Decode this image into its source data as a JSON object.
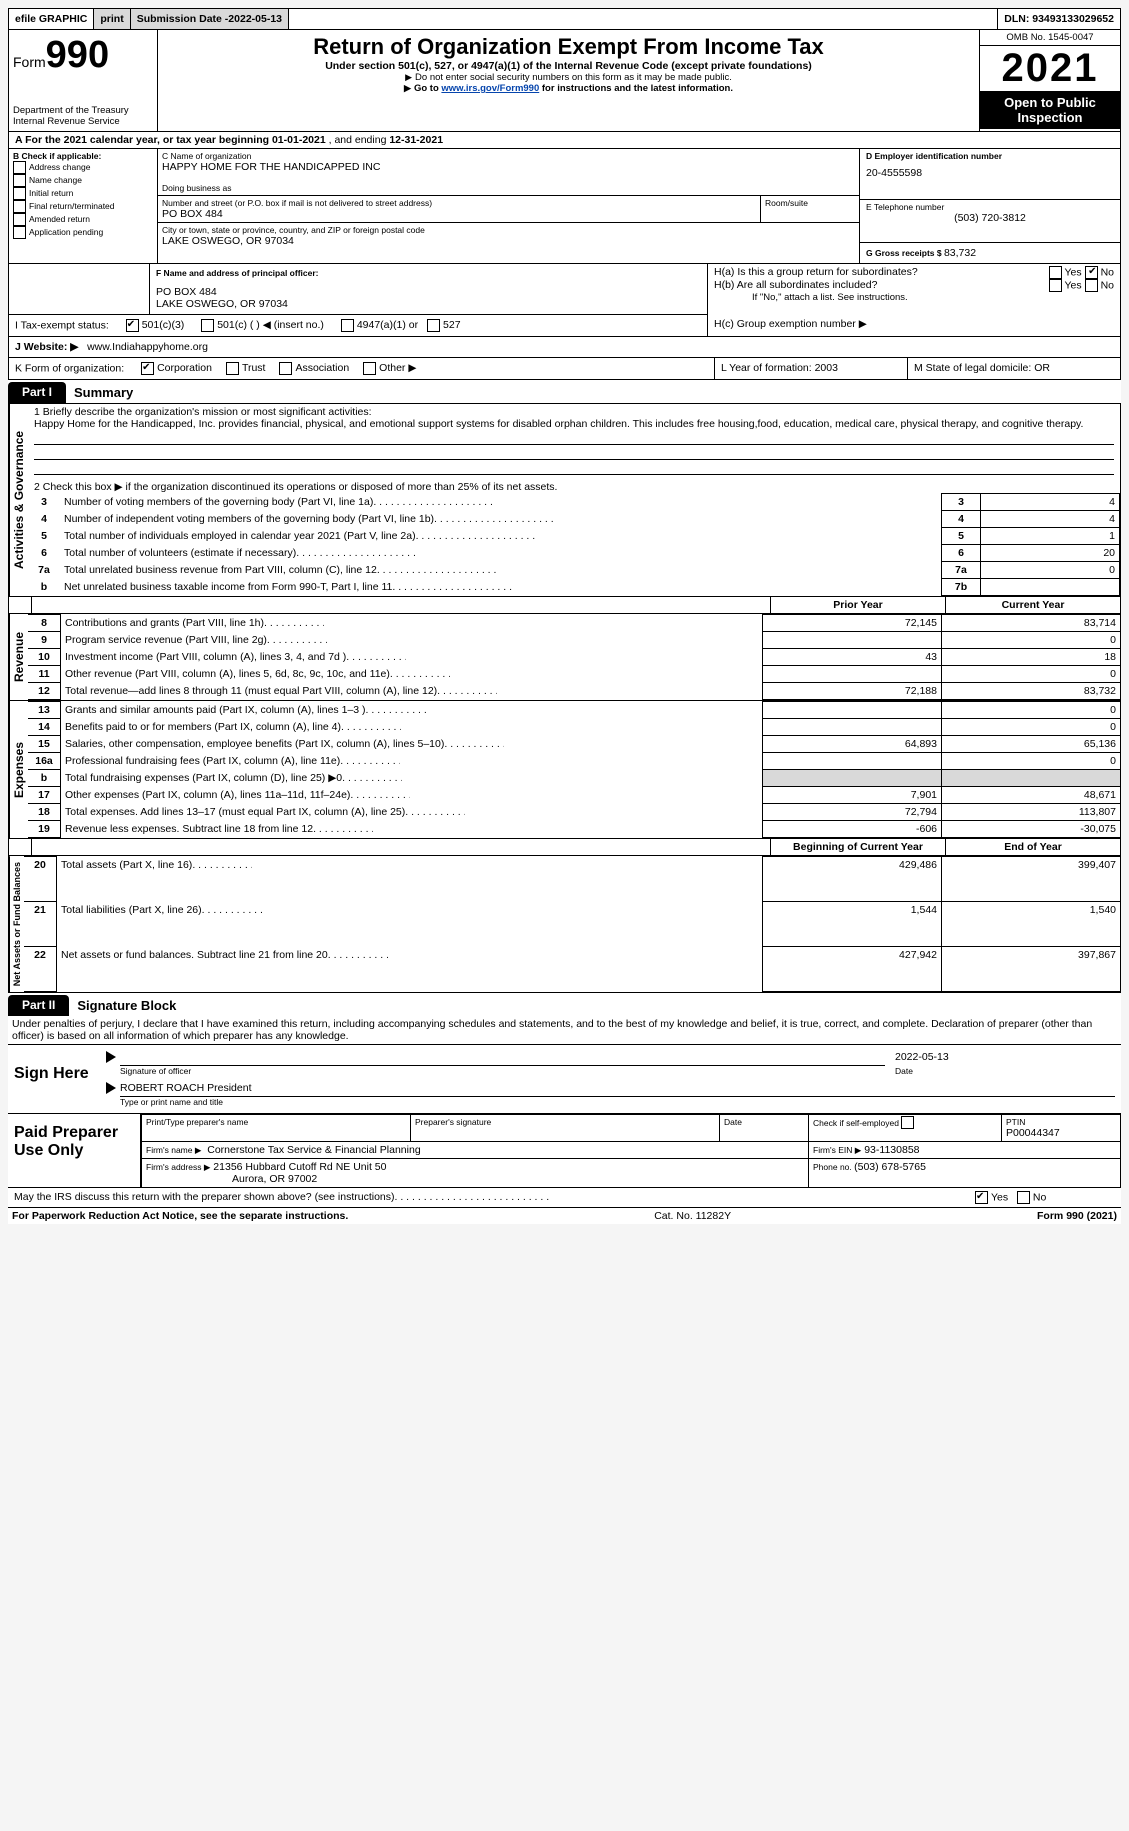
{
  "topbar": {
    "efile": "efile GRAPHIC",
    "print": "print",
    "submission_label": "Submission Date - ",
    "submission_date": "2022-05-13",
    "dln_label": "DLN: ",
    "dln": "93493133029652"
  },
  "header": {
    "form_word": "Form",
    "form_number": "990",
    "department": "Department of the Treasury",
    "irs": "Internal Revenue Service",
    "title": "Return of Organization Exempt From Income Tax",
    "subtitle": "Under section 501(c), 527, or 4947(a)(1) of the Internal Revenue Code (except private foundations)",
    "note1": "Do not enter social security numbers on this form as it may be made public.",
    "note2_pre": "Go to ",
    "note2_link": "www.irs.gov/Form990",
    "note2_post": " for instructions and the latest information.",
    "omb": "OMB No. 1545-0047",
    "year": "2021",
    "inspection": "Open to Public Inspection"
  },
  "a_line": {
    "text_pre": "A For the 2021 calendar year, or tax year beginning ",
    "begin": "01-01-2021",
    "mid": "  , and ending ",
    "end": "12-31-2021"
  },
  "box_b": {
    "label": "B Check if applicable:",
    "opts": [
      "Address change",
      "Name change",
      "Initial return",
      "Final return/terminated",
      "Amended return",
      "Application pending"
    ]
  },
  "box_c": {
    "name_label": "C Name of organization",
    "name": "HAPPY HOME FOR THE HANDICAPPED INC",
    "dba_label": "Doing business as",
    "dba": "",
    "street_label": "Number and street (or P.O. box if mail is not delivered to street address)",
    "room_label": "Room/suite",
    "street": "PO BOX 484",
    "city_label": "City or town, state or province, country, and ZIP or foreign postal code",
    "city": "LAKE OSWEGO, OR  97034"
  },
  "box_d": {
    "label": "D Employer identification number",
    "value": "20-4555598"
  },
  "box_e": {
    "label": "E Telephone number",
    "value": "(503) 720-3812"
  },
  "box_g": {
    "label": "G Gross receipts $ ",
    "value": "83,732"
  },
  "box_f": {
    "label": "F  Name and address of principal officer:",
    "line1": "PO BOX 484",
    "line2": "LAKE OSWEGO, OR  97034"
  },
  "box_h": {
    "a": "H(a)  Is this a group return for subordinates?",
    "b": "H(b)  Are all subordinates included?",
    "note": "If \"No,\" attach a list. See instructions.",
    "c": "H(c)  Group exemption number ▶",
    "yes": "Yes",
    "no": "No"
  },
  "box_i": {
    "label": "I   Tax-exempt status:",
    "o1": "501(c)(3)",
    "o2": "501(c) (   ) ◀ (insert no.)",
    "o3": "4947(a)(1) or",
    "o4": "527"
  },
  "box_j": {
    "label": "J   Website: ▶",
    "value": "www.Indiahappyhome.org"
  },
  "box_k": {
    "label": "K Form of organization:",
    "opts": [
      "Corporation",
      "Trust",
      "Association",
      "Other ▶"
    ]
  },
  "box_l": {
    "label": "L Year of formation: ",
    "value": "2003"
  },
  "box_m": {
    "label": "M State of legal domicile: ",
    "value": "OR"
  },
  "part1": {
    "tab": "Part I",
    "title": "Summary"
  },
  "summary": {
    "q1_label": "1   Briefly describe the organization's mission or most significant activities:",
    "q1_text": "Happy Home for the Handicapped, Inc. provides financial, physical, and emotional support systems for disabled orphan children. This includes free housing,food, education, medical care, physical therapy, and cognitive therapy.",
    "q2": "2   Check this box ▶        if the organization discontinued its operations or disposed of more than 25% of its net assets.",
    "rows_gov": [
      {
        "n": "3",
        "t": "Number of voting members of the governing body (Part VI, line 1a)",
        "box": "3",
        "v": "4"
      },
      {
        "n": "4",
        "t": "Number of independent voting members of the governing body (Part VI, line 1b)",
        "box": "4",
        "v": "4"
      },
      {
        "n": "5",
        "t": "Total number of individuals employed in calendar year 2021 (Part V, line 2a)",
        "box": "5",
        "v": "1"
      },
      {
        "n": "6",
        "t": "Total number of volunteers (estimate if necessary)",
        "box": "6",
        "v": "20"
      },
      {
        "n": "7a",
        "t": "Total unrelated business revenue from Part VIII, column (C), line 12",
        "box": "7a",
        "v": "0"
      },
      {
        "n": "b",
        "t": "Net unrelated business taxable income from Form 990-T, Part I, line 11",
        "box": "7b",
        "v": ""
      }
    ],
    "col_head_prior": "Prior Year",
    "col_head_current": "Current Year",
    "rows_rev": [
      {
        "n": "8",
        "t": "Contributions and grants (Part VIII, line 1h)",
        "p": "72,145",
        "c": "83,714"
      },
      {
        "n": "9",
        "t": "Program service revenue (Part VIII, line 2g)",
        "p": "",
        "c": "0"
      },
      {
        "n": "10",
        "t": "Investment income (Part VIII, column (A), lines 3, 4, and 7d )",
        "p": "43",
        "c": "18"
      },
      {
        "n": "11",
        "t": "Other revenue (Part VIII, column (A), lines 5, 6d, 8c, 9c, 10c, and 11e)",
        "p": "",
        "c": "0"
      },
      {
        "n": "12",
        "t": "Total revenue—add lines 8 through 11 (must equal Part VIII, column (A), line 12)",
        "p": "72,188",
        "c": "83,732"
      }
    ],
    "rows_exp": [
      {
        "n": "13",
        "t": "Grants and similar amounts paid (Part IX, column (A), lines 1–3 )",
        "p": "",
        "c": "0"
      },
      {
        "n": "14",
        "t": "Benefits paid to or for members (Part IX, column (A), line 4)",
        "p": "",
        "c": "0"
      },
      {
        "n": "15",
        "t": "Salaries, other compensation, employee benefits (Part IX, column (A), lines 5–10)",
        "p": "64,893",
        "c": "65,136"
      },
      {
        "n": "16a",
        "t": "Professional fundraising fees (Part IX, column (A), line 11e)",
        "p": "",
        "c": "0"
      },
      {
        "n": "b",
        "t": "Total fundraising expenses (Part IX, column (D), line 25) ▶0",
        "p": "SHADE",
        "c": "SHADE"
      },
      {
        "n": "17",
        "t": "Other expenses (Part IX, column (A), lines 11a–11d, 11f–24e)",
        "p": "7,901",
        "c": "48,671"
      },
      {
        "n": "18",
        "t": "Total expenses. Add lines 13–17 (must equal Part IX, column (A), line 25)",
        "p": "72,794",
        "c": "113,807"
      },
      {
        "n": "19",
        "t": "Revenue less expenses. Subtract line 18 from line 12",
        "p": "-606",
        "c": "-30,075"
      }
    ],
    "col_head_begin": "Beginning of Current Year",
    "col_head_end": "End of Year",
    "rows_net": [
      {
        "n": "20",
        "t": "Total assets (Part X, line 16)",
        "p": "429,486",
        "c": "399,407"
      },
      {
        "n": "21",
        "t": "Total liabilities (Part X, line 26)",
        "p": "1,544",
        "c": "1,540"
      },
      {
        "n": "22",
        "t": "Net assets or fund balances. Subtract line 21 from line 20",
        "p": "427,942",
        "c": "397,867"
      }
    ],
    "vlabels": {
      "gov": "Activities & Governance",
      "rev": "Revenue",
      "exp": "Expenses",
      "net": "Net Assets or Fund Balances"
    }
  },
  "part2": {
    "tab": "Part II",
    "title": "Signature Block",
    "declaration": "Under penalties of perjury, I declare that I have examined this return, including accompanying schedules and statements, and to the best of my knowledge and belief, it is true, correct, and complete. Declaration of preparer (other than officer) is based on all information of which preparer has any knowledge."
  },
  "sign": {
    "here": "Sign Here",
    "sig_officer": "Signature of officer",
    "date": "Date",
    "sig_date": "2022-05-13",
    "name_title": "ROBERT ROACH  President",
    "type_name": "Type or print name and title"
  },
  "preparer": {
    "label": "Paid Preparer Use Only",
    "print_name": "Print/Type preparer's name",
    "signature": "Preparer's signature",
    "date": "Date",
    "check": "Check         if self-employed",
    "ptin_label": "PTIN",
    "ptin": "P00044347",
    "firm_name_label": "Firm's name      ▶",
    "firm_name": "Cornerstone Tax Service & Financial Planning",
    "firm_ein_label": "Firm's EIN ▶",
    "firm_ein": "93-1130858",
    "firm_addr_label": "Firm's address ▶",
    "firm_addr1": "21356 Hubbard Cutoff Rd NE Unit 50",
    "firm_addr2": "Aurora, OR  97002",
    "phone_label": "Phone no. ",
    "phone": "(503) 678-5765"
  },
  "discuss": {
    "q": "May the IRS discuss this return with the preparer shown above? (see instructions)",
    "yes": "Yes",
    "no": "No"
  },
  "footer": {
    "left": "For Paperwork Reduction Act Notice, see the separate instructions.",
    "mid": "Cat. No. 11282Y",
    "right": "Form 990 (2021)"
  }
}
